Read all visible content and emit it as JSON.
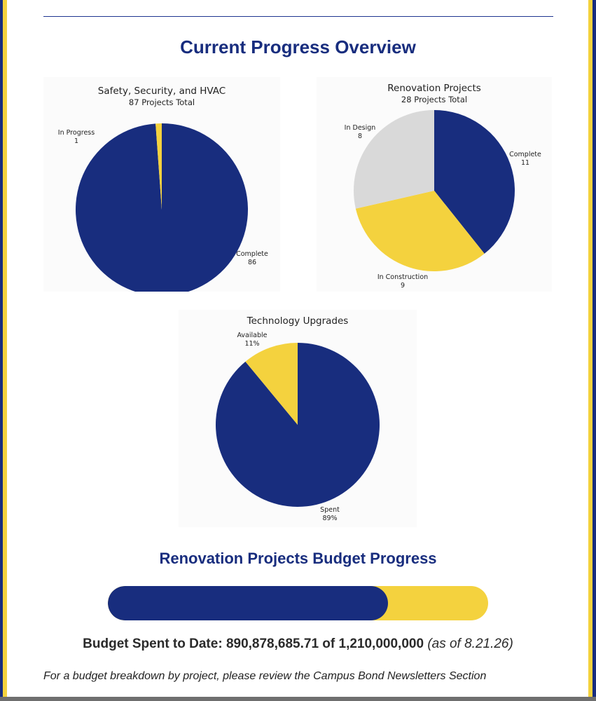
{
  "page": {
    "overview_title": "Current Progress Overview",
    "budget_title": "Renovation Projects Budget Progress",
    "budget_line": {
      "label": "Budget Spent to Date:",
      "spent": "890,878,685.71",
      "of_word": "of",
      "total": "1,210,000,000",
      "as_of": "(as of 8.21.26)"
    },
    "footnote": "For a budget breakdown by project, please review the Campus Bond Newsletters Section"
  },
  "colors": {
    "navy": "#182d7e",
    "yellow": "#f4d23e",
    "gray": "#d9d9d9"
  },
  "budget_progress": {
    "spent": 890878685.71,
    "total": 1210000000,
    "fraction": 0.7363
  },
  "chart_data": [
    {
      "type": "pie",
      "title": "Safety, Security, and HVAC",
      "subtitle": "87 Projects Total",
      "start_angle_deg": 0,
      "slices": [
        {
          "label": "Complete",
          "value": 86,
          "value_label": "86",
          "color": "#182d7e"
        },
        {
          "label": "In Progress",
          "value": 1,
          "value_label": "1",
          "color": "#f4d23e"
        }
      ]
    },
    {
      "type": "pie",
      "title": "Renovation Projects",
      "subtitle": "28 Projects Total",
      "start_angle_deg": 0,
      "slices": [
        {
          "label": "Complete",
          "value": 11,
          "value_label": "11",
          "color": "#182d7e"
        },
        {
          "label": "In Construction",
          "value": 9,
          "value_label": "9",
          "color": "#f4d23e"
        },
        {
          "label": "In Design",
          "value": 8,
          "value_label": "8",
          "color": "#d9d9d9"
        }
      ]
    },
    {
      "type": "pie",
      "title": "Technology Upgrades",
      "subtitle": "",
      "start_angle_deg": 0,
      "slices": [
        {
          "label": "Spent",
          "value": 89,
          "value_label": "89%",
          "color": "#182d7e"
        },
        {
          "label": "Available",
          "value": 11,
          "value_label": "11%",
          "color": "#f4d23e"
        }
      ]
    }
  ]
}
